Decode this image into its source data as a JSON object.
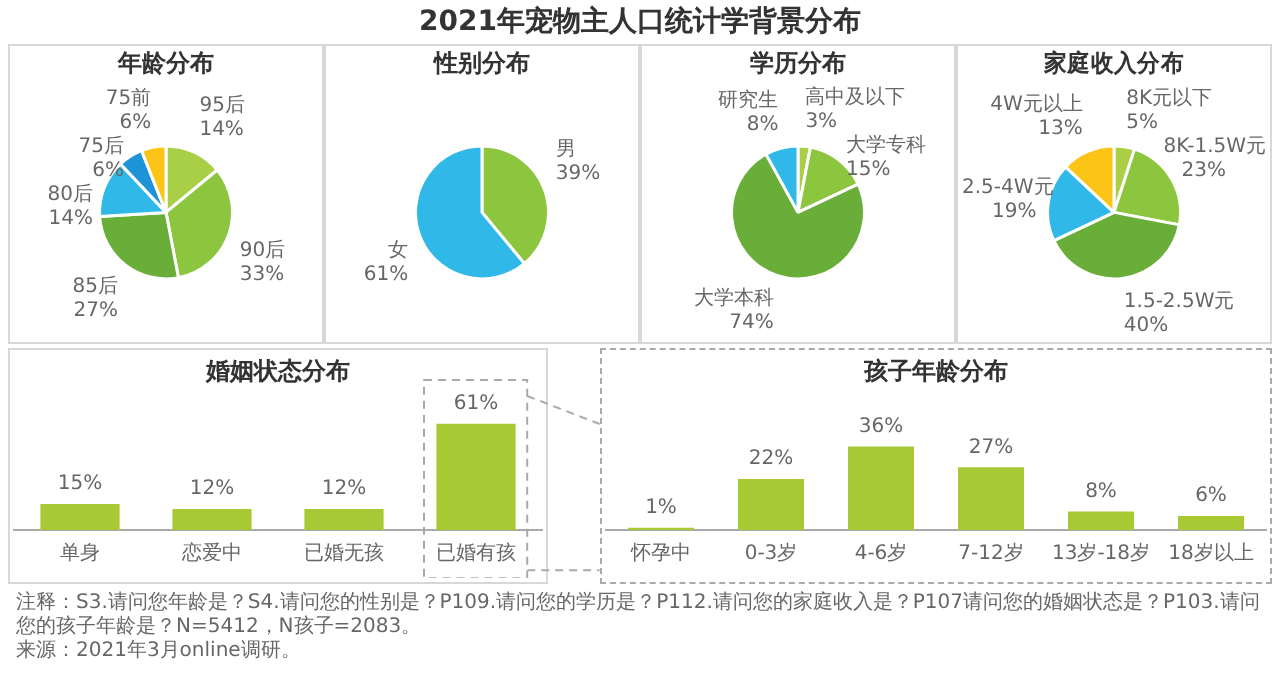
{
  "chart_data": [
    {
      "type": "other",
      "title": "2021年宠物主人口统计学背景分布",
      "annotations": [
        "注释：S3.请问您年龄是？S4.请问您的性别是？P109.请问您的学历是？P112.请问您的家庭收入是？P107请问您的婚姻状态是？P103.请问您的孩子年龄是？N=5412，N孩子=2083。",
        "来源：2021年3月online调研。"
      ]
    },
    {
      "type": "pie",
      "title": "年龄分布",
      "categories": [
        "95后",
        "90后",
        "85后",
        "80后",
        "75后",
        "75前"
      ],
      "values": [
        14,
        33,
        27,
        14,
        6,
        6
      ],
      "value_labels": [
        "14%",
        "33%",
        "27%",
        "14%",
        "6%",
        "6%"
      ],
      "colors": [
        "#a8cf45",
        "#8cc63f",
        "#6aae3a",
        "#2fb8e8",
        "#1f93d8",
        "#fcc417"
      ]
    },
    {
      "type": "pie",
      "title": "性别分布",
      "categories": [
        "男",
        "女"
      ],
      "values": [
        39,
        61
      ],
      "value_labels": [
        "39%",
        "61%"
      ],
      "colors": [
        "#8cc63f",
        "#2fb8e8"
      ]
    },
    {
      "type": "pie",
      "title": "学历分布",
      "categories": [
        "高中及以下",
        "大学专科",
        "大学本科",
        "研究生"
      ],
      "values": [
        3,
        15,
        74,
        8
      ],
      "value_labels": [
        "3%",
        "15%",
        "74%",
        "8%"
      ],
      "colors": [
        "#a8cf45",
        "#8cc63f",
        "#6aae3a",
        "#2fb8e8"
      ]
    },
    {
      "type": "pie",
      "title": "家庭收入分布",
      "categories": [
        "8K元以下",
        "8K-1.5W元",
        "1.5-2.5W元",
        "2.5-4W元",
        "4W元以上"
      ],
      "values": [
        5,
        23,
        40,
        19,
        13
      ],
      "value_labels": [
        "5%",
        "23%",
        "40%",
        "19%",
        "13%"
      ],
      "colors": [
        "#a8cf45",
        "#8cc63f",
        "#6aae3a",
        "#2fb8e8",
        "#fcc417"
      ]
    },
    {
      "type": "bar",
      "title": "婚姻状态分布",
      "categories": [
        "单身",
        "恋爱中",
        "已婚无孩",
        "已婚有孩"
      ],
      "values": [
        15,
        12,
        12,
        61
      ],
      "value_labels": [
        "15%",
        "12%",
        "12%",
        "61%"
      ],
      "color": "#a6c934",
      "grid": false
    },
    {
      "type": "bar",
      "title": "孩子年龄分布",
      "categories": [
        "怀孕中",
        "0-3岁",
        "4-6岁",
        "7-12岁",
        "13岁-18岁",
        "18岁以上"
      ],
      "values": [
        1,
        22,
        36,
        27,
        8,
        6
      ],
      "value_labels": [
        "1%",
        "22%",
        "36%",
        "27%",
        "8%",
        "6%"
      ],
      "color": "#a6c934",
      "grid": false
    }
  ]
}
